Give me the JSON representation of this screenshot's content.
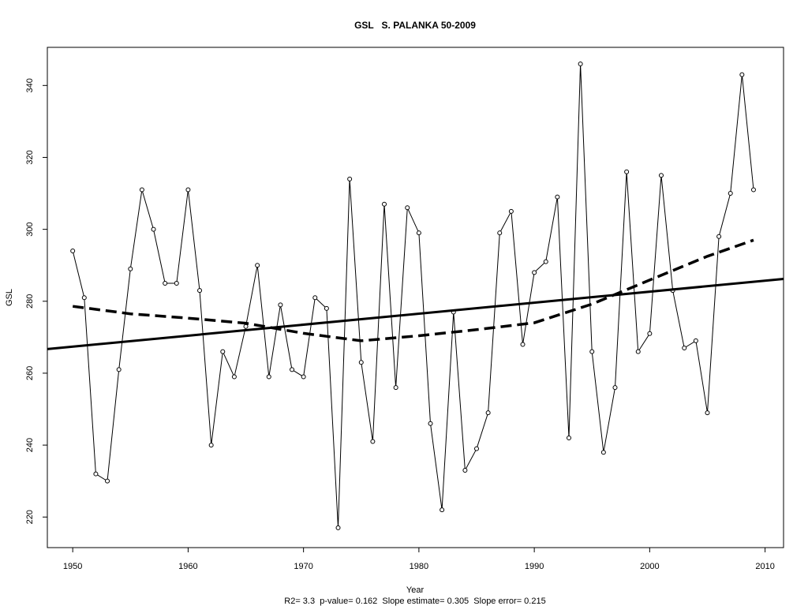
{
  "chart_data": {
    "type": "line",
    "title": "GSL   S. PALANKA 50-2009",
    "xlabel": "Year",
    "ylabel": "GSL",
    "subtitle": "R2= 3.3  p-value= 0.162  Slope estimate= 0.305  Slope error= 0.215",
    "xlim": [
      1947.8,
      2011.6
    ],
    "ylim": [
      211.5,
      350.6
    ],
    "x_ticks": [
      1950,
      1960,
      1970,
      1980,
      1990,
      2000,
      2010
    ],
    "y_ticks": [
      220,
      240,
      260,
      280,
      300,
      320,
      340
    ],
    "grid": false,
    "series": [
      {
        "x": [
          1950,
          1951,
          1952,
          1953,
          1954,
          1955,
          1956,
          1957,
          1958,
          1959,
          1960,
          1961,
          1962,
          1963,
          1964,
          1965,
          1966,
          1967,
          1968,
          1969,
          1970,
          1971,
          1972,
          1973,
          1974,
          1975,
          1976,
          1977,
          1978,
          1979,
          1980,
          1981,
          1982,
          1983,
          1984,
          1985,
          1986,
          1987,
          1988,
          1989,
          1990,
          1991,
          1992,
          1993,
          1994,
          1995,
          1996,
          1997,
          1998,
          1999,
          2000,
          2001,
          2002,
          2003,
          2004,
          2005,
          2006,
          2007,
          2008,
          2009
        ],
        "values": [
          294,
          281,
          232,
          230,
          261,
          289,
          311,
          300,
          285,
          285,
          311,
          283,
          240,
          266,
          259,
          273,
          290,
          259,
          279,
          261,
          259,
          281,
          278,
          217,
          314,
          263,
          241,
          307,
          256,
          306,
          299,
          246,
          222,
          277,
          233,
          239,
          249,
          299,
          305,
          268,
          288,
          291,
          309,
          242,
          346,
          266,
          238,
          256,
          316,
          266,
          271,
          315,
          283,
          267,
          269,
          249,
          298,
          310,
          343,
          311
        ],
        "style": "thin-line-with-open-circles"
      },
      {
        "x": [
          1947.8,
          2011.6
        ],
        "values": [
          266.7,
          286.2
        ],
        "style": "thick-solid-trend"
      },
      {
        "x": [
          1950,
          1955,
          1960,
          1965,
          1970,
          1975,
          1980,
          1985,
          1990,
          1995,
          2000,
          2005,
          2009
        ],
        "values": [
          278.6,
          276.5,
          275.3,
          273.9,
          271.1,
          269.0,
          270.4,
          272.1,
          274.0,
          279.2,
          285.9,
          292.5,
          297.0
        ],
        "style": "thick-dashed-smooth"
      }
    ]
  }
}
